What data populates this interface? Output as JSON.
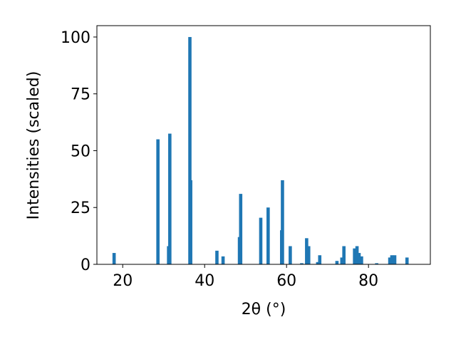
{
  "chart_data": {
    "type": "bar",
    "x_label": "2θ (°)",
    "y_label": "Intensities (scaled)",
    "color": "#1f77b4",
    "x": [
      17.9,
      28.6,
      31.2,
      31.5,
      36.4,
      36.6,
      43.0,
      44.5,
      48.5,
      48.8,
      53.7,
      55.5,
      58.8,
      59.0,
      60.9,
      63.7,
      64.9,
      65.4,
      67.6,
      68.1,
      72.3,
      73.5,
      74.0,
      76.6,
      77.2,
      77.7,
      78.3,
      82.0,
      85.2,
      85.7,
      86.4,
      89.4
    ],
    "values": [
      5,
      55,
      8,
      57.5,
      100,
      37,
      6,
      3.5,
      12,
      31,
      20.5,
      25,
      15,
      37,
      8,
      0.5,
      11.5,
      8,
      1,
      4,
      1.5,
      3,
      8,
      7,
      8,
      5,
      3.5,
      0.5,
      3,
      4,
      4,
      3
    ],
    "xlim": [
      13.7,
      95.1
    ],
    "ylim": [
      0,
      105
    ],
    "xticks": [
      20,
      40,
      60,
      80
    ],
    "yticks": [
      0,
      25,
      50,
      75,
      100
    ]
  }
}
